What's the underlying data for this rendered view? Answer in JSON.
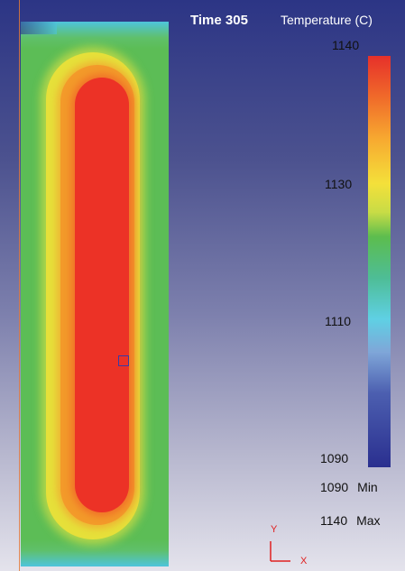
{
  "time": {
    "label": "Time 305"
  },
  "legend": {
    "title": "Temperature (C)",
    "ticks": [
      "1140",
      "1130",
      "1110",
      "1090"
    ],
    "min_value": "1090",
    "min_label": "Min",
    "max_value": "1140",
    "max_label": "Max",
    "colors": [
      "#e6302a",
      "#f7a830",
      "#f4e03a",
      "#5cbd4e",
      "#5fd0e4",
      "#4c5fb0",
      "#2a2f8f"
    ]
  },
  "axes": {
    "y_label": "Y",
    "x_label": "X"
  },
  "background": {
    "top": "#2c3585",
    "bottom": "#e4e3ec"
  }
}
